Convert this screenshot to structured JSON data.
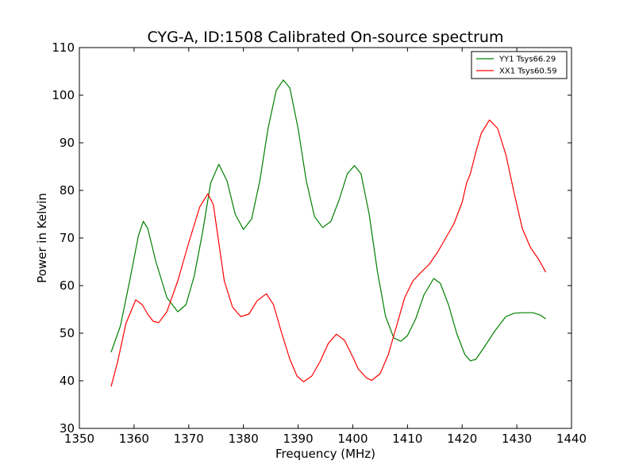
{
  "chart_data": {
    "type": "line",
    "title": "CYG-A, ID:1508 Calibrated On-source spectrum",
    "xlabel": "Frequency (MHz)",
    "ylabel": "Power in Kelvin",
    "xlim": [
      1350,
      1440
    ],
    "ylim": [
      30,
      110
    ],
    "xticks": [
      1350,
      1360,
      1370,
      1380,
      1390,
      1400,
      1410,
      1420,
      1430,
      1440
    ],
    "yticks": [
      30,
      40,
      50,
      60,
      70,
      80,
      90,
      100,
      110
    ],
    "grid": false,
    "legend_position": "top-right",
    "series": [
      {
        "name": "YY1 Tsys66.29",
        "color": "#008000",
        "points": [
          [
            1355.8,
            46.0
          ],
          [
            1357.5,
            51.5
          ],
          [
            1359.2,
            61.0
          ],
          [
            1360.8,
            70.5
          ],
          [
            1361.7,
            73.5
          ],
          [
            1362.5,
            72.0
          ],
          [
            1364.0,
            65.0
          ],
          [
            1366.0,
            57.5
          ],
          [
            1368.0,
            54.5
          ],
          [
            1369.5,
            56.0
          ],
          [
            1371.0,
            62.0
          ],
          [
            1372.5,
            71.0
          ],
          [
            1374.0,
            81.5
          ],
          [
            1375.5,
            85.5
          ],
          [
            1377.0,
            82.0
          ],
          [
            1378.5,
            75.0
          ],
          [
            1380.0,
            71.8
          ],
          [
            1381.5,
            74.0
          ],
          [
            1383.0,
            82.0
          ],
          [
            1384.5,
            93.0
          ],
          [
            1386.0,
            101.0
          ],
          [
            1387.3,
            103.2
          ],
          [
            1388.5,
            101.5
          ],
          [
            1390.0,
            93.0
          ],
          [
            1391.5,
            82.0
          ],
          [
            1393.0,
            74.5
          ],
          [
            1394.5,
            72.2
          ],
          [
            1396.0,
            73.5
          ],
          [
            1397.5,
            78.0
          ],
          [
            1399.0,
            83.5
          ],
          [
            1400.3,
            85.2
          ],
          [
            1401.5,
            83.5
          ],
          [
            1403.0,
            75.0
          ],
          [
            1404.5,
            63.0
          ],
          [
            1406.0,
            53.5
          ],
          [
            1407.5,
            49.0
          ],
          [
            1408.8,
            48.3
          ],
          [
            1410.0,
            49.5
          ],
          [
            1411.5,
            53.0
          ],
          [
            1413.0,
            58.0
          ],
          [
            1414.8,
            61.5
          ],
          [
            1416.0,
            60.5
          ],
          [
            1417.5,
            56.0
          ],
          [
            1419.0,
            50.0
          ],
          [
            1420.5,
            45.5
          ],
          [
            1421.5,
            44.2
          ],
          [
            1422.5,
            44.5
          ],
          [
            1424.0,
            47.0
          ],
          [
            1426.0,
            50.5
          ],
          [
            1428.0,
            53.5
          ],
          [
            1429.5,
            54.2
          ],
          [
            1431.0,
            54.3
          ],
          [
            1433.0,
            54.3
          ],
          [
            1434.3,
            53.8
          ],
          [
            1435.3,
            53.0
          ]
        ]
      },
      {
        "name": "XX1 Tsys60.59",
        "color": "#ff0000",
        "points": [
          [
            1355.8,
            38.8
          ],
          [
            1357.0,
            44.0
          ],
          [
            1358.5,
            52.0
          ],
          [
            1360.3,
            57.0
          ],
          [
            1361.5,
            56.0
          ],
          [
            1362.5,
            54.0
          ],
          [
            1363.5,
            52.5
          ],
          [
            1364.5,
            52.2
          ],
          [
            1366.0,
            54.5
          ],
          [
            1368.0,
            61.0
          ],
          [
            1370.0,
            69.0
          ],
          [
            1372.0,
            76.5
          ],
          [
            1373.5,
            79.3
          ],
          [
            1374.5,
            77.0
          ],
          [
            1375.5,
            69.0
          ],
          [
            1376.5,
            61.0
          ],
          [
            1378.0,
            55.5
          ],
          [
            1379.5,
            53.5
          ],
          [
            1381.0,
            54.0
          ],
          [
            1382.5,
            56.8
          ],
          [
            1384.2,
            58.3
          ],
          [
            1385.5,
            56.0
          ],
          [
            1387.0,
            50.0
          ],
          [
            1388.5,
            44.5
          ],
          [
            1389.8,
            41.0
          ],
          [
            1391.0,
            39.8
          ],
          [
            1392.5,
            41.0
          ],
          [
            1394.0,
            44.0
          ],
          [
            1395.5,
            47.8
          ],
          [
            1397.0,
            49.8
          ],
          [
            1398.5,
            48.5
          ],
          [
            1400.0,
            45.0
          ],
          [
            1401.0,
            42.5
          ],
          [
            1402.5,
            40.6
          ],
          [
            1403.5,
            40.1
          ],
          [
            1405.0,
            41.5
          ],
          [
            1406.5,
            45.5
          ],
          [
            1408.0,
            51.5
          ],
          [
            1409.5,
            57.5
          ],
          [
            1411.0,
            61.0
          ],
          [
            1412.5,
            62.8
          ],
          [
            1414.0,
            64.5
          ],
          [
            1415.5,
            67.0
          ],
          [
            1417.0,
            70.0
          ],
          [
            1418.5,
            73.0
          ],
          [
            1420.0,
            77.5
          ],
          [
            1420.8,
            81.5
          ],
          [
            1421.5,
            83.5
          ],
          [
            1422.5,
            88.0
          ],
          [
            1423.5,
            92.0
          ],
          [
            1425.0,
            94.8
          ],
          [
            1426.5,
            93.0
          ],
          [
            1428.0,
            87.5
          ],
          [
            1429.5,
            79.5
          ],
          [
            1431.0,
            72.0
          ],
          [
            1432.5,
            68.0
          ],
          [
            1434.0,
            65.5
          ],
          [
            1435.3,
            62.8
          ]
        ]
      }
    ]
  }
}
